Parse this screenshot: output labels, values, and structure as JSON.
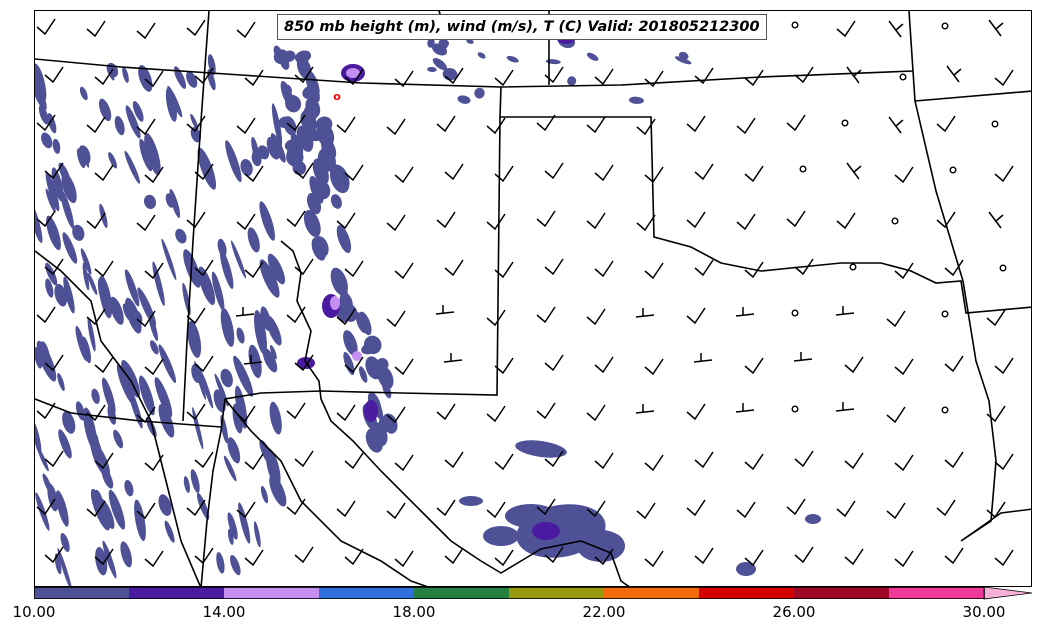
{
  "title": "850 mb height (m), wind (m/s), T (C) Valid: 201805212300",
  "colorbar": {
    "colors": [
      "#4f5197",
      "#4a1aa0",
      "#c58ef2",
      "#2f6fdb",
      "#238040",
      "#9a9a10",
      "#f36a0a",
      "#d50000",
      "#a00828",
      "#f03a9a",
      "#f7b0d8"
    ],
    "tick_labels": [
      "10.00",
      "14.00",
      "18.00",
      "22.00",
      "26.00",
      "30.00"
    ]
  },
  "legend_colors": {
    "fill_low": "#4f5197",
    "fill_mid": "#4a1aa0",
    "fill_high": "#c58ef2",
    "fill_top": "#2f6fdb",
    "boundary": "#000000",
    "marker": "#ff0000"
  }
}
